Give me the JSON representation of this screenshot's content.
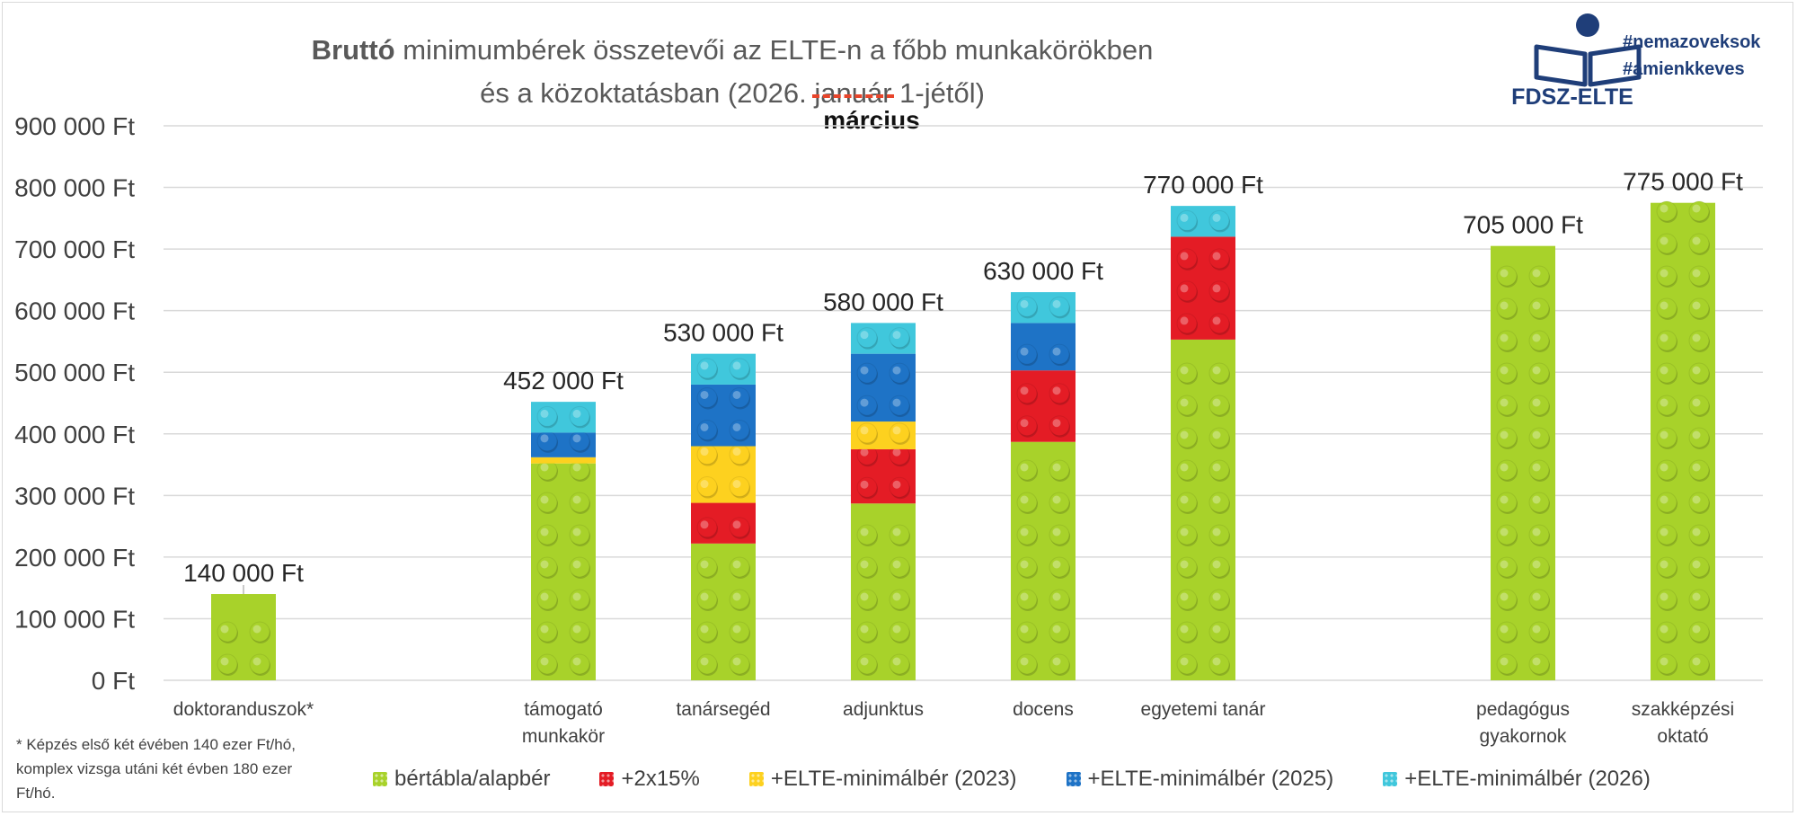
{
  "title": {
    "bold": "Bruttó",
    "rest": " minimumbérek összetevői az ELTE-n a főbb munkakörökben",
    "line2_a": "és a közoktatásban (2026. ",
    "line2_strike": "január",
    "line2_b": " 1-jétől)",
    "correction": "március"
  },
  "logo": {
    "text": "FDSZ-ELTE",
    "hashtags": [
      "#nemazoveksok",
      "#amienkkeves"
    ]
  },
  "footnote": "* Képzés első két évében 140 ezer Ft/hó, komplex vizsga utáni két évben 180 ezer Ft/hó.",
  "colors": {
    "base": "#a8d22a",
    "plus2x15": "#e41c25",
    "elte2023": "#fdd11f",
    "elte2025": "#1e73c6",
    "elte2026": "#40c7dc"
  },
  "chart_data": {
    "type": "bar",
    "stacked": true,
    "categories": [
      [
        "doktoranduszok*"
      ],
      [
        "támogató",
        "munkakör"
      ],
      [
        "tanársegéd"
      ],
      [
        "adjunktus"
      ],
      [
        "docens"
      ],
      [
        "egyetemi tanár"
      ],
      [
        "pedagógus",
        "gyakornok"
      ],
      [
        "szakképzési",
        "oktató"
      ]
    ],
    "slots": [
      0,
      2,
      3,
      4,
      5,
      6,
      8,
      9
    ],
    "series": [
      {
        "name": "bértábla/alapbér",
        "color_key": "base",
        "values": [
          140000,
          352000,
          222000,
          287000,
          387000,
          553000,
          705000,
          775000
        ]
      },
      {
        "name": "+2x15%",
        "color_key": "plus2x15",
        "values": [
          0,
          0,
          66000,
          88000,
          116000,
          167000,
          0,
          0
        ]
      },
      {
        "name": "+ELTE-minimálbér (2023)",
        "color_key": "elte2023",
        "values": [
          0,
          10000,
          92000,
          45000,
          0,
          0,
          0,
          0
        ]
      },
      {
        "name": "+ELTE-minimálbér (2025)",
        "color_key": "elte2025",
        "values": [
          0,
          40000,
          100000,
          110000,
          77000,
          0,
          0,
          0
        ]
      },
      {
        "name": "+ELTE-minimálbér (2026)",
        "color_key": "elte2026",
        "values": [
          0,
          50000,
          50000,
          50000,
          50000,
          50000,
          0,
          0
        ]
      }
    ],
    "totals": [
      "140 000 Ft",
      "452 000 Ft",
      "530 000 Ft",
      "580 000 Ft",
      "630 000 Ft",
      "770 000 Ft",
      "705 000 Ft",
      "775 000 Ft"
    ],
    "total_values": [
      140000,
      452000,
      530000,
      580000,
      630000,
      770000,
      705000,
      775000
    ],
    "yticks": [
      0,
      100000,
      200000,
      300000,
      400000,
      500000,
      600000,
      700000,
      800000,
      900000
    ],
    "ytick_labels": [
      "0 Ft",
      "100 000 Ft",
      "200 000 Ft",
      "300 000 Ft",
      "400 000 Ft",
      "500 000 Ft",
      "600 000 Ft",
      "700 000 Ft",
      "800 000 Ft",
      "900 000 Ft"
    ],
    "ylim": [
      0,
      900000
    ],
    "grid": true,
    "legend_position": "bottom"
  }
}
